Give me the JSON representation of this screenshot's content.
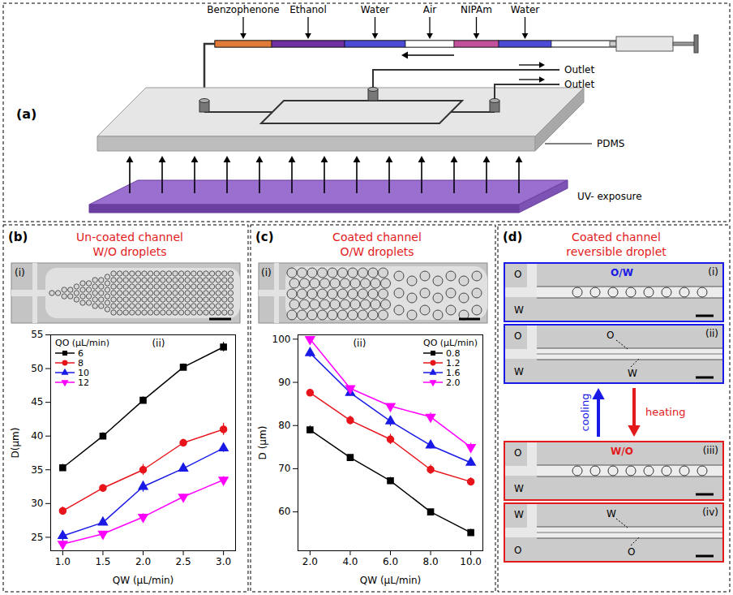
{
  "figure": {
    "panel_a": {
      "label": "(a)",
      "reagents": [
        "Benzophenone",
        "Ethanol",
        "Water",
        "Air",
        "NIPAm",
        "Water"
      ],
      "outlets": [
        "Outlet",
        "Outlet"
      ],
      "chip": "PDMS",
      "light": "UV- exposure"
    },
    "panel_b": {
      "label": "(b)",
      "title": [
        "Un-coated channel",
        "W/O droplets"
      ],
      "image": "(i)"
    },
    "panel_c": {
      "label": "(c)",
      "title": [
        "Coated channel",
        "O/W droplets"
      ],
      "image": "(i)"
    },
    "panel_d": {
      "label": "(d)",
      "title": [
        "Coated channel",
        "reversible droplet"
      ],
      "images": [
        {
          "label": "(i)",
          "texts": [
            "O",
            "W"
          ],
          "phase": "O/W"
        },
        {
          "label": "(ii)",
          "texts": [
            "O",
            "W"
          ],
          "streams": [
            "O",
            "W"
          ]
        },
        {
          "label": "(iii)",
          "texts": [
            "O",
            "W"
          ],
          "phase": "W/O"
        },
        {
          "label": "(iv)",
          "texts": [
            "W",
            "O"
          ],
          "streams": [
            "W",
            "O"
          ]
        }
      ],
      "arrows": {
        "up": "cooling",
        "down": "heating"
      }
    }
  },
  "chart_data": [
    {
      "type": "line",
      "annotation": "(ii)",
      "x_label": "QW (μL/min)",
      "y_label": "D(μm)",
      "legend_title": "QO (μL/min)",
      "legend": "top-left",
      "grid": false,
      "x": [
        1.0,
        1.5,
        2.0,
        2.5,
        3.0
      ],
      "xlim": [
        0.85,
        3.15
      ],
      "xticks": [
        {
          "value": 1,
          "label": "1.0"
        },
        1.5,
        {
          "value": 2,
          "label": "2.0"
        },
        2.5,
        {
          "value": 3,
          "label": "3.0"
        }
      ],
      "ylim": [
        23,
        55
      ],
      "yticks": [
        25,
        30,
        35,
        40,
        45,
        50,
        55
      ],
      "series": [
        {
          "name": "6",
          "color": "#000000",
          "marker": "square",
          "line_style": "solid",
          "values": [
            35.3,
            40.0,
            45.3,
            50.2,
            53.2
          ],
          "errors": [
            0.5,
            0.5,
            0.5,
            0.5,
            0.7
          ]
        },
        {
          "name": "8",
          "color": "#e8141b",
          "marker": "circle",
          "line_style": "solid",
          "values": [
            28.9,
            32.3,
            35.0,
            39.0,
            41.0
          ],
          "errors": [
            0.6,
            0.5,
            0.8,
            0.5,
            0.9
          ]
        },
        {
          "name": "10",
          "color": "#1a1ae6",
          "marker": "triangle-up",
          "line_style": "solid",
          "values": [
            25.2,
            27.2,
            32.5,
            35.2,
            38.2
          ],
          "errors": [
            0.8,
            0.4,
            0.8,
            0.5,
            0.6
          ]
        },
        {
          "name": "12",
          "color": "#ff00ff",
          "marker": "triangle-down",
          "line_style": "solid",
          "values": [
            24.0,
            25.5,
            28.0,
            31.0,
            33.5
          ],
          "errors": [
            0.4,
            0.4,
            0.5,
            0.4,
            0.5
          ]
        }
      ]
    },
    {
      "type": "line",
      "annotation": "(ii)",
      "x_label": "QW (μL/min)",
      "y_label": "D (μm)",
      "legend_title": "QO (μL/min)",
      "legend": "top-right",
      "grid": false,
      "x": [
        2.0,
        4.0,
        6.0,
        8.0,
        10.0
      ],
      "xlim": [
        1.4,
        10.6
      ],
      "xticks": [
        {
          "value": 2,
          "label": "2.0"
        },
        {
          "value": 4,
          "label": "4.0"
        },
        {
          "value": 6,
          "label": "6.0"
        },
        {
          "value": 8,
          "label": "8.0"
        },
        {
          "value": 10,
          "label": "10.0"
        }
      ],
      "ylim": [
        51,
        101
      ],
      "yticks": [
        60,
        70,
        80,
        90,
        100
      ],
      "series": [
        {
          "name": "0.8",
          "color": "#000000",
          "marker": "square",
          "line_style": "solid",
          "values": [
            79.0,
            72.6,
            67.2,
            60.0,
            55.2
          ],
          "errors": [
            0.9,
            0.5,
            0.8,
            0.6,
            0.8
          ]
        },
        {
          "name": "1.2",
          "color": "#e8141b",
          "marker": "circle",
          "line_style": "solid",
          "values": [
            87.6,
            81.2,
            76.8,
            69.8,
            67.0
          ],
          "errors": [
            0.7,
            1.0,
            1.2,
            1.1,
            0.9
          ]
        },
        {
          "name": "1.6",
          "color": "#1a1ae6",
          "marker": "triangle-up",
          "line_style": "solid",
          "values": [
            96.8,
            87.6,
            81.0,
            75.4,
            71.4
          ],
          "errors": [
            1.0,
            0.5,
            1.2,
            0.8,
            0.8
          ]
        },
        {
          "name": "2.0",
          "color": "#ff00ff",
          "marker": "triangle-down",
          "line_style": "solid",
          "values": [
            100.0,
            88.6,
            84.5,
            82.0,
            75.0
          ],
          "errors": [
            0.5,
            0.6,
            0.5,
            0.9,
            0.9
          ]
        }
      ]
    }
  ]
}
